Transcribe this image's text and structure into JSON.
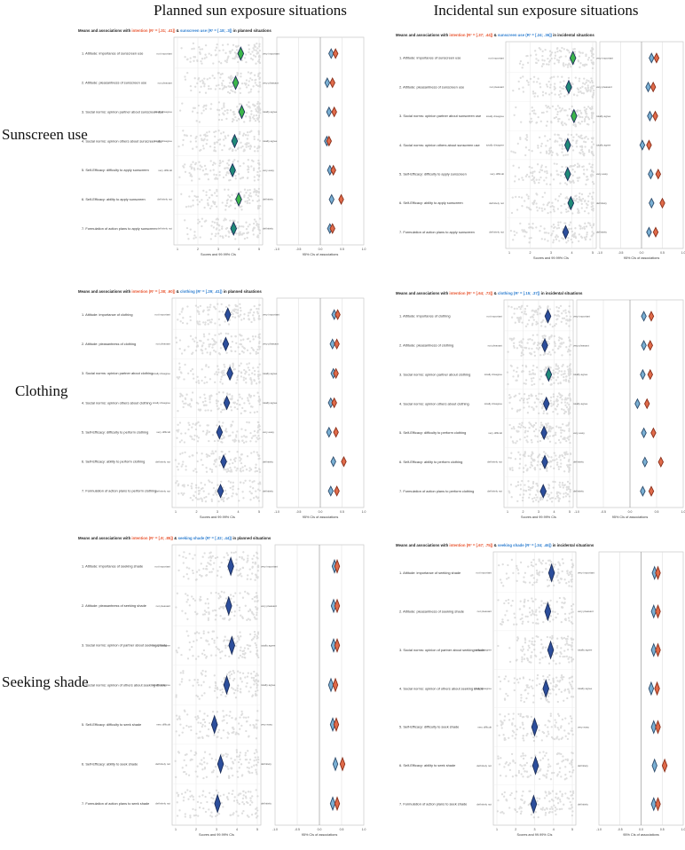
{
  "figure": {
    "col_titles": [
      "Planned sun exposure situations",
      "Incidental sun exposure situations"
    ],
    "row_titles": [
      "Sunscreen use",
      "Clothing",
      "Seeking shade"
    ],
    "colors": {
      "intention": "#e8542f",
      "sunscreen": "#2f7fd0",
      "clothing": "#2f7fd0",
      "shade": "#2f7fd0",
      "diamond_green": "#3cb64a",
      "diamond_teal": "#1f8a78",
      "diamond_blue": "#2c4e9c",
      "assoc_blue": "#7ab0d4",
      "assoc_red": "#e06b4a",
      "jitter": "#c4c4c4"
    },
    "score_axis_label": "Scores and 99.99% CIs",
    "score_ticks": [
      "1",
      "2",
      "3",
      "4",
      "5"
    ],
    "assoc_ticks": [
      "-1.0",
      "-0.5",
      "0.0",
      "0.5",
      "1.0"
    ]
  },
  "chart_data": [
    {
      "type": "scatter",
      "title": "Means and associations with intention (R² = [.31; .41]) & sunscreen use (R² = [.18; .3]) in planned situations",
      "title_parts": {
        "prefix": "Means and associations with ",
        "dv1": "intention (R² = [.31; .41])",
        "mid": " & ",
        "dv2": "sunscreen use (R² = [.18; .3])",
        "suffix": " in planned situations",
        "dv2_key": "sunscreen"
      },
      "assoc_label": "95% CIs of associations",
      "items": [
        {
          "label": "1. Attitude: importance of sunscreen use",
          "left": "not important",
          "right": "very important",
          "mean": 4.1,
          "diamond": "green",
          "r1": 0.35,
          "r2": 0.25
        },
        {
          "label": "2. Attitude: pleasantness of sunscreen use",
          "left": "not pleasant",
          "right": "very pleasant",
          "mean": 3.85,
          "diamond": "green",
          "r1": 0.28,
          "r2": 0.16
        },
        {
          "label": "3. Social norms: opinion partner about sunscreen use",
          "left": "totally disagree",
          "right": "totally agree",
          "mean": 4.15,
          "diamond": "green",
          "r1": 0.32,
          "r2": 0.2
        },
        {
          "label": "4. Social norms: opinion others about sunscreen use",
          "left": "totally disagree",
          "right": "totally agree",
          "mean": 3.8,
          "diamond": "teal",
          "r1": 0.2,
          "r2": 0.15
        },
        {
          "label": "5. Self-Efficacy: difficulty to apply sunscreen",
          "left": "very difficult",
          "right": "very easy",
          "mean": 3.7,
          "diamond": "teal",
          "r1": 0.3,
          "r2": 0.22
        },
        {
          "label": "6. Self-Efficacy: ability to apply sunscreen",
          "left": "definitely not",
          "right": "definitely",
          "mean": 4.0,
          "diamond": "green",
          "r1": 0.48,
          "r2": 0.26
        },
        {
          "label": "7. Formulation of action plans to apply sunscreen",
          "left": "definitely not",
          "right": "definitely",
          "mean": 3.75,
          "diamond": "teal",
          "r1": 0.28,
          "r2": 0.22
        }
      ]
    },
    {
      "type": "scatter",
      "title": "Means and associations with intention (R² = [.37; .44]) & sunscreen use (R² = [.24; .36]) in incidental situations",
      "title_parts": {
        "prefix": "Means and associations with ",
        "dv1": "intention (R² = [.37; .44])",
        "mid": " & ",
        "dv2": "sunscreen use (R² = [.24; .36])",
        "suffix": " in incidental situations",
        "dv2_key": "sunscreen"
      },
      "assoc_label": "95% CIs of associations",
      "items": [
        {
          "label": "1. Attitude: importance of sunscreen use",
          "left": "not important",
          "right": "very important",
          "mean": 4.05,
          "diamond": "green",
          "r1": 0.36,
          "r2": 0.24
        },
        {
          "label": "2. Attitude: pleasantness of sunscreen use",
          "left": "not pleasant",
          "right": "very pleasant",
          "mean": 3.85,
          "diamond": "teal",
          "r1": 0.28,
          "r2": 0.16
        },
        {
          "label": "3. Social norms: opinion partner about sunscreen use",
          "left": "totally disagree",
          "right": "totally agree",
          "mean": 4.1,
          "diamond": "green",
          "r1": 0.33,
          "r2": 0.2
        },
        {
          "label": "4. Social norms: opinion others about sunscreen use",
          "left": "totally disagree",
          "right": "totally agree",
          "mean": 3.8,
          "diamond": "teal",
          "r1": 0.18,
          "r2": 0.02
        },
        {
          "label": "5. Self-Efficacy: difficulty to apply sunscreen",
          "left": "very difficult",
          "right": "very easy",
          "mean": 3.8,
          "diamond": "teal",
          "r1": 0.4,
          "r2": 0.22
        },
        {
          "label": "6. Self-Efficacy: ability to apply sunscreen",
          "left": "definitely not",
          "right": "definitely",
          "mean": 3.95,
          "diamond": "teal",
          "r1": 0.5,
          "r2": 0.24
        },
        {
          "label": "7. Formulation of action plans to apply sunscreen",
          "left": "definitely not",
          "right": "definitely",
          "mean": 3.7,
          "diamond": "blue",
          "r1": 0.34,
          "r2": 0.18
        }
      ]
    },
    {
      "type": "scatter",
      "title": "Means and associations with intention (R² = [.38; .60]) & clothing (R² = [.29; .41]) in planned situations",
      "title_parts": {
        "prefix": "Means and associations with ",
        "dv1": "intention (R² = [.38; .60])",
        "mid": " & ",
        "dv2": "clothing (R² = [.29; .41])",
        "suffix": " in planned situations",
        "dv2_key": "clothing"
      },
      "assoc_label": "95% CIs of associations",
      "items": [
        {
          "label": "1. Attitude: importance of clothing",
          "left": "not important",
          "right": "very important",
          "mean": 3.5,
          "diamond": "blue",
          "r1": 0.4,
          "r2": 0.32
        },
        {
          "label": "2. Attitude: pleasantness of clothing",
          "left": "not pleasant",
          "right": "very pleasant",
          "mean": 3.4,
          "diamond": "blue",
          "r1": 0.38,
          "r2": 0.28
        },
        {
          "label": "3. Social norms: opinion partner about clothing",
          "left": "totally disagree",
          "right": "totally agree",
          "mean": 3.6,
          "diamond": "blue",
          "r1": 0.36,
          "r2": 0.3
        },
        {
          "label": "4. Social norms: opinion others about clothing",
          "left": "totally disagree",
          "right": "totally agree",
          "mean": 3.45,
          "diamond": "blue",
          "r1": 0.32,
          "r2": 0.24
        },
        {
          "label": "5. Self-Efficacy: difficulty to perform clothing",
          "left": "very difficult",
          "right": "very easy",
          "mean": 3.1,
          "diamond": "blue",
          "r1": 0.36,
          "r2": 0.2
        },
        {
          "label": "6. Self-Efficacy: ability to perform clothing",
          "left": "definitely not",
          "right": "definitely",
          "mean": 3.3,
          "diamond": "blue",
          "r1": 0.54,
          "r2": 0.3
        },
        {
          "label": "7. Formulation of action plans to perform clothing",
          "left": "definitely not",
          "right": "definitely",
          "mean": 3.15,
          "diamond": "blue",
          "r1": 0.38,
          "r2": 0.24
        }
      ]
    },
    {
      "type": "scatter",
      "title": "Means and associations with intention (R² = [.64; .73]) & clothing (R² = [.15; .37]) in incidental situations",
      "title_parts": {
        "prefix": "Means and associations with ",
        "dv1": "intention (R² = [.64; .73])",
        "mid": " & ",
        "dv2": "clothing (R² = [.15; .37])",
        "suffix": " in incidental situations",
        "dv2_key": "clothing"
      },
      "assoc_label": "95% CIs of associations",
      "items": [
        {
          "label": "1. Attitude: importance of clothing",
          "left": "not important",
          "right": "very important",
          "mean": 3.6,
          "diamond": "blue",
          "r1": 0.4,
          "r2": 0.26
        },
        {
          "label": "2. Attitude: pleasantness of clothing",
          "left": "not pleasant",
          "right": "very pleasant",
          "mean": 3.4,
          "diamond": "blue",
          "r1": 0.38,
          "r2": 0.26
        },
        {
          "label": "3. Social norms: opinion partner about clothing",
          "left": "totally disagree",
          "right": "totally agree",
          "mean": 3.65,
          "diamond": "teal",
          "r1": 0.38,
          "r2": 0.24
        },
        {
          "label": "4. Social norms: opinion others about clothing",
          "left": "totally disagree",
          "right": "totally agree",
          "mean": 3.5,
          "diamond": "blue",
          "r1": 0.32,
          "r2": 0.14
        },
        {
          "label": "5. Self-Efficacy: difficulty to perform clothing",
          "left": "very difficult",
          "right": "very easy",
          "mean": 3.35,
          "diamond": "blue",
          "r1": 0.44,
          "r2": 0.26
        },
        {
          "label": "6. Self-Efficacy: ability to perform clothing",
          "left": "definitely not",
          "right": "definitely",
          "mean": 3.4,
          "diamond": "blue",
          "r1": 0.58,
          "r2": 0.28
        },
        {
          "label": "7. Formulation of action plans to perform clothing",
          "left": "definitely not",
          "right": "definitely",
          "mean": 3.3,
          "diamond": "blue",
          "r1": 0.4,
          "r2": 0.24
        }
      ]
    },
    {
      "type": "scatter",
      "title": "Means and associations with intention (R² = [.8; .85]) & seeking shade (R² = [.32; .44]) in planned situations",
      "title_parts": {
        "prefix": "Means and associations with ",
        "dv1": "intention (R² = [.8; .85])",
        "mid": " & ",
        "dv2": "seeking shade (R² = [.32; .44])",
        "suffix": " in planned situations",
        "dv2_key": "shade"
      },
      "assoc_label": "95% CIs of associations",
      "items": [
        {
          "label": "1. Attitude: importance of seeking shade",
          "left": "not important",
          "right": "very important",
          "mean": 3.7,
          "diamond": "blue",
          "r1": 0.4,
          "r2": 0.34
        },
        {
          "label": "2. Attitude: pleasantness of seeking shade",
          "left": "not pleasant",
          "right": "very pleasant",
          "mean": 3.6,
          "diamond": "blue",
          "r1": 0.4,
          "r2": 0.32
        },
        {
          "label": "3. Social norms: opinion of partner about seeking shade",
          "left": "totally disagree",
          "right": "totally agree",
          "mean": 3.75,
          "diamond": "blue",
          "r1": 0.4,
          "r2": 0.32
        },
        {
          "label": "4. Social norms: opinion of others about seeking shade",
          "left": "totally disagree",
          "right": "totally agree",
          "mean": 3.5,
          "diamond": "blue",
          "r1": 0.36,
          "r2": 0.26
        },
        {
          "label": "5. Self-Efficacy: difficulty to seek shade",
          "left": "very difficult",
          "right": "very easy",
          "mean": 2.9,
          "diamond": "blue",
          "r1": 0.38,
          "r2": 0.3
        },
        {
          "label": "6. Self-Efficacy: ability to seek shade",
          "left": "definitely not",
          "right": "definitely",
          "mean": 3.2,
          "diamond": "blue",
          "r1": 0.52,
          "r2": 0.36
        },
        {
          "label": "7. Formulation of action plans to seek shade",
          "left": "definitely not",
          "right": "definitely",
          "mean": 3.05,
          "diamond": "blue",
          "r1": 0.4,
          "r2": 0.3
        }
      ]
    },
    {
      "type": "scatter",
      "title": "Means and associations with intention (R² = [.67; .75]) & seeking shade (R² = [.34; .46]) in incidental situations",
      "title_parts": {
        "prefix": "Means and associations with ",
        "dv1": "intention (R² = [.67; .75])",
        "mid": " & ",
        "dv2": "seeking shade (R² = [.34; .46])",
        "suffix": " in incidental situations",
        "dv2_key": "shade"
      },
      "assoc_label": "95% CIs of associations",
      "items": [
        {
          "label": "1. Attitude: importance of seeking shade",
          "left": "not important",
          "right": "very important",
          "mean": 3.9,
          "diamond": "blue",
          "r1": 0.4,
          "r2": 0.32
        },
        {
          "label": "2. Attitude: pleasantness of seeking shade",
          "left": "not pleasant",
          "right": "very pleasant",
          "mean": 3.7,
          "diamond": "blue",
          "r1": 0.4,
          "r2": 0.3
        },
        {
          "label": "3. Social norms: opinion of partner about seeking shade",
          "left": "totally disagree",
          "right": "totally agree",
          "mean": 3.85,
          "diamond": "blue",
          "r1": 0.4,
          "r2": 0.3
        },
        {
          "label": "4. Social norms: opinion of others about seeking shade",
          "left": "totally disagree",
          "right": "totally agree",
          "mean": 3.6,
          "diamond": "blue",
          "r1": 0.38,
          "r2": 0.24
        },
        {
          "label": "5. Self-Efficacy: difficulty to seek shade",
          "left": "very difficult",
          "right": "very easy",
          "mean": 3.0,
          "diamond": "blue",
          "r1": 0.4,
          "r2": 0.3
        },
        {
          "label": "6. Self-Efficacy: ability to seek shade",
          "left": "definitely not",
          "right": "definitely",
          "mean": 3.05,
          "diamond": "blue",
          "r1": 0.56,
          "r2": 0.32
        },
        {
          "label": "7. Formulation of action plans to seek shade",
          "left": "definitely not",
          "right": "definitely",
          "mean": 2.95,
          "diamond": "blue",
          "r1": 0.4,
          "r2": 0.3
        }
      ]
    }
  ]
}
